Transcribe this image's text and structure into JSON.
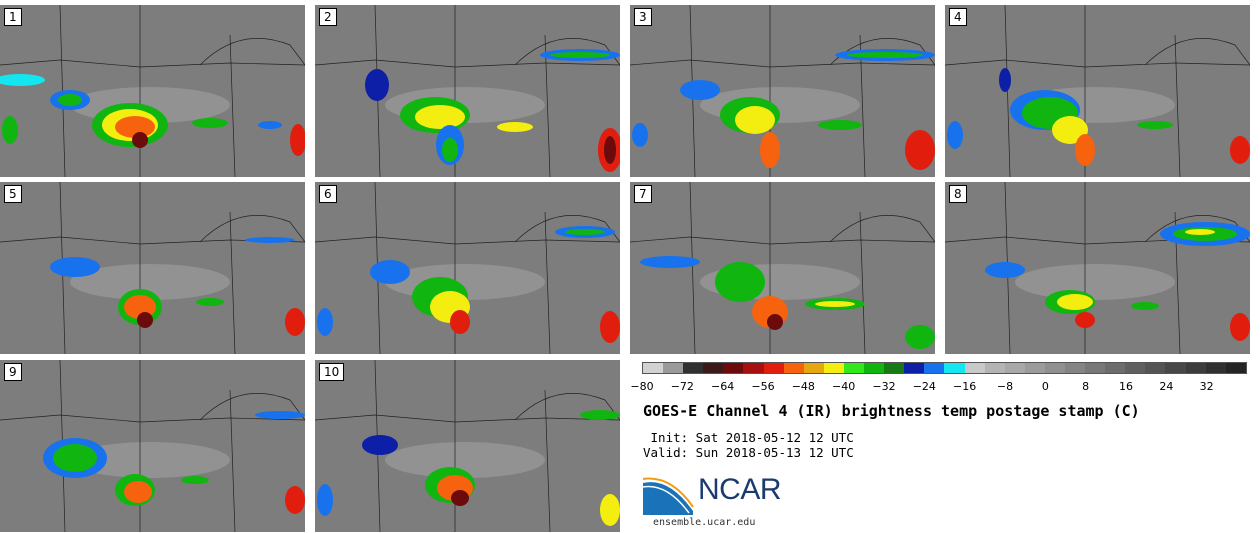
{
  "panels": [
    {
      "num": "1"
    },
    {
      "num": "2"
    },
    {
      "num": "3"
    },
    {
      "num": "4"
    },
    {
      "num": "5"
    },
    {
      "num": "6"
    },
    {
      "num": "7"
    },
    {
      "num": "8"
    },
    {
      "num": "9"
    },
    {
      "num": "10"
    }
  ],
  "colorbar": {
    "ticks": [
      "−80",
      "−72",
      "−64",
      "−56",
      "−48",
      "−40",
      "−32",
      "−24",
      "−16",
      "−8",
      "0",
      "8",
      "16",
      "24",
      "32"
    ],
    "colors": [
      "#d2d2d2",
      "#9a9a9a",
      "#303030",
      "#3d1a1a",
      "#6b0b0b",
      "#a80f0f",
      "#e11d0d",
      "#f7620f",
      "#e6a612",
      "#f3ee10",
      "#34e81e",
      "#10b510",
      "#157a15",
      "#0d1fa6",
      "#1872ee",
      "#14e6f0",
      "#c8c8c8",
      "#b4b4b4",
      "#a8a8a8",
      "#9c9c9c",
      "#909090",
      "#848484",
      "#787878",
      "#6c6c6c",
      "#606060",
      "#545454",
      "#484848",
      "#3c3c3c",
      "#303030",
      "#242424"
    ]
  },
  "title": "GOES-E Channel 4 (IR) brightness temp postage stamp (C)",
  "init": " Init: Sat 2018-05-12 12 UTC",
  "valid": "Valid: Sun 2018-05-13 12 UTC",
  "logo": {
    "name": "NCAR",
    "url": "ensemble.ucar.edu"
  }
}
